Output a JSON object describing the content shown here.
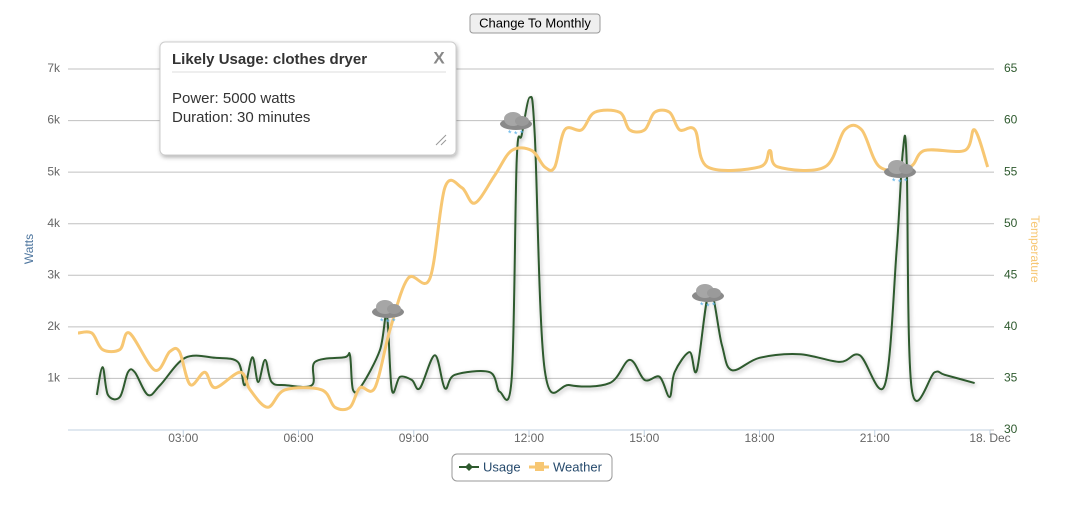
{
  "button": "Change To Monthly",
  "tooltip": {
    "title": "Likely Usage: clothes dryer",
    "close": "X",
    "lines": [
      "Power: 5000 watts",
      "Duration: 30 minutes"
    ]
  },
  "chart_data": {
    "type": "line",
    "ylabel": "Watts",
    "y2label": "Temperature",
    "xlim": [
      0,
      24
    ],
    "xticks": [
      {
        "value": 3,
        "label": "03:00"
      },
      {
        "value": 6,
        "label": "06:00"
      },
      {
        "value": 9,
        "label": "09:00"
      },
      {
        "value": 12,
        "label": "12:00"
      },
      {
        "value": 15,
        "label": "15:00"
      },
      {
        "value": 18,
        "label": "18:00"
      },
      {
        "value": 21,
        "label": "21:00"
      },
      {
        "value": 24,
        "label": "18. Dec"
      }
    ],
    "ylim": [
      0,
      7000
    ],
    "yticks": [
      {
        "value": 1000,
        "label": "1k"
      },
      {
        "value": 2000,
        "label": "2k"
      },
      {
        "value": 3000,
        "label": "3k"
      },
      {
        "value": 4000,
        "label": "4k"
      },
      {
        "value": 5000,
        "label": "5k"
      },
      {
        "value": 6000,
        "label": "6k"
      },
      {
        "value": 7000,
        "label": "7k"
      }
    ],
    "y2lim": [
      30,
      65
    ],
    "y2ticks": [
      30,
      35,
      40,
      45,
      50,
      55,
      60,
      65
    ],
    "grid": true,
    "legend": "bottom",
    "series": [
      {
        "name": "Usage",
        "color": "#2e5a2e",
        "x": [
          0.75,
          0.9,
          1.04,
          1.35,
          1.56,
          1.74,
          2.08,
          2.4,
          3.05,
          3.83,
          4.42,
          4.6,
          4.8,
          4.95,
          5.13,
          5.3,
          5.65,
          6.35,
          6.43,
          7.2,
          7.34,
          7.42,
          7.65,
          8.12,
          8.3,
          8.43,
          8.64,
          8.95,
          9.16,
          9.55,
          9.81,
          10.07,
          10.98,
          11.24,
          11.55,
          11.68,
          11.81,
          12.02,
          12.15,
          12.41,
          13.06,
          14.1,
          14.62,
          15.01,
          15.4,
          15.66,
          15.79,
          16.18,
          16.37,
          16.7,
          17.02,
          17.28,
          18.0,
          19.05,
          20.09,
          20.61,
          21.26,
          21.57,
          21.73,
          21.83,
          21.96,
          22.56,
          22.82,
          23.6
        ],
        "values": [
          680,
          1220,
          680,
          640,
          1120,
          1120,
          680,
          870,
          1400,
          1400,
          1320,
          870,
          1410,
          930,
          1360,
          930,
          870,
          870,
          1320,
          1410,
          1450,
          775,
          870,
          1550,
          2230,
          775,
          1030,
          970,
          810,
          1450,
          810,
          1070,
          1120,
          740,
          1010,
          5230,
          5720,
          6450,
          5720,
          1160,
          870,
          910,
          1360,
          970,
          1030,
          640,
          1120,
          1510,
          1160,
          2710,
          1650,
          1160,
          1400,
          1470,
          1320,
          1450,
          870,
          3490,
          5390,
          5230,
          810,
          1120,
          1070,
          910
        ]
      },
      {
        "name": "Weather",
        "color": "#f7c773",
        "axis": "y2",
        "x": [
          0.26,
          0.62,
          0.9,
          1.35,
          1.6,
          2.26,
          2.65,
          2.9,
          3.18,
          3.56,
          3.83,
          4.48,
          4.74,
          5.2,
          5.65,
          6.6,
          6.95,
          7.34,
          7.6,
          7.99,
          8.38,
          8.85,
          9.42,
          9.81,
          10.25,
          10.59,
          11.11,
          11.55,
          12.07,
          12.41,
          12.67,
          12.93,
          13.37,
          13.71,
          14.36,
          14.62,
          15.01,
          15.27,
          15.66,
          15.92,
          16.32,
          16.65,
          18.0,
          18.27,
          18.48,
          19.7,
          20.22,
          20.66,
          21.13,
          21.91,
          22.3,
          23.34,
          23.6,
          23.94
        ],
        "values": [
          39.4,
          39.4,
          37.8,
          37.8,
          39.4,
          35.8,
          37.6,
          37.6,
          34.4,
          35.6,
          34.1,
          35.6,
          33.9,
          32.2,
          33.9,
          33.9,
          32.2,
          32.2,
          34.1,
          34.1,
          39.7,
          44.7,
          44.7,
          53.5,
          53.5,
          52.0,
          54.7,
          57.1,
          57.1,
          55.5,
          55.5,
          59.1,
          59.1,
          60.8,
          60.8,
          59.1,
          59.1,
          60.8,
          60.8,
          59.1,
          59.1,
          55.5,
          55.5,
          57.1,
          55.5,
          55.5,
          59.1,
          59.1,
          55.5,
          55.5,
          57.1,
          57.1,
          59.1,
          55.5
        ]
      }
    ]
  }
}
